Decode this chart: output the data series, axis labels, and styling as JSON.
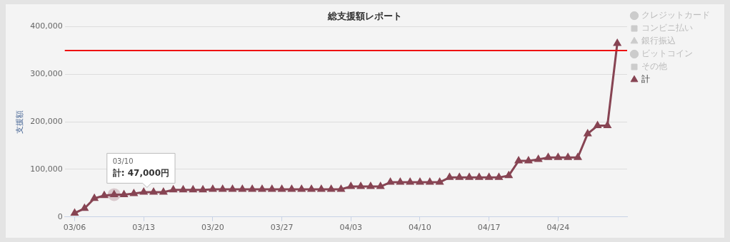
{
  "chart_data": {
    "type": "line",
    "title": "総支援額レポート",
    "ylabel": "支援額",
    "x": [
      "--03-06",
      "--03-07",
      "--03-08",
      "--03-09",
      "--03-10",
      "--03-11",
      "--03-12",
      "--03-13",
      "--03-14",
      "--03-15",
      "--03-16",
      "--03-17",
      "--03-18",
      "--03-19",
      "--03-20",
      "--03-21",
      "--03-22",
      "--03-23",
      "--03-24",
      "--03-25",
      "--03-26",
      "--03-27",
      "--03-28",
      "--03-29",
      "--03-30",
      "--03-31",
      "--04-01",
      "--04-02",
      "--04-03",
      "--04-04",
      "--04-05",
      "--04-06",
      "--04-07",
      "--04-08",
      "--04-09",
      "--04-10",
      "--04-11",
      "--04-12",
      "--04-13",
      "--04-14",
      "--04-15",
      "--04-16",
      "--04-17",
      "--04-18",
      "--04-19",
      "--04-20",
      "--04-21",
      "--04-22",
      "--04-23",
      "--04-24",
      "--04-25",
      "--04-26",
      "--04-27",
      "--04-28",
      "--04-29",
      "--04-30"
    ],
    "series": [
      {
        "name": "クレジットカード",
        "color": "#cccccc",
        "marker": "circle",
        "values": [
          null,
          null,
          null,
          null,
          null,
          null,
          null,
          null,
          null,
          null,
          null,
          null,
          null,
          null,
          null,
          null,
          null,
          null,
          null,
          null,
          null,
          null,
          null,
          null,
          null,
          null,
          null,
          null,
          null,
          null,
          null,
          null,
          null,
          null,
          null,
          null,
          null,
          null,
          null,
          null,
          null,
          null,
          null,
          null,
          null,
          null,
          null,
          null,
          null,
          null,
          null,
          null,
          null,
          null,
          null,
          null
        ]
      },
      {
        "name": "コンビニ払い",
        "color": "#cccccc",
        "marker": "square",
        "values": [
          null,
          null,
          null,
          null,
          null,
          null,
          null,
          null,
          null,
          null,
          null,
          null,
          null,
          null,
          null,
          null,
          null,
          null,
          null,
          null,
          null,
          null,
          null,
          null,
          null,
          null,
          null,
          null,
          null,
          null,
          null,
          null,
          null,
          null,
          null,
          null,
          null,
          null,
          null,
          null,
          null,
          null,
          null,
          null,
          null,
          null,
          null,
          null,
          null,
          null,
          null,
          null,
          null,
          null,
          null,
          null
        ]
      },
      {
        "name": "銀行振込",
        "color": "#cccccc",
        "marker": "triangle",
        "values": [
          null,
          null,
          null,
          null,
          null,
          null,
          null,
          null,
          null,
          null,
          null,
          null,
          null,
          null,
          null,
          null,
          null,
          null,
          null,
          null,
          null,
          null,
          null,
          null,
          null,
          null,
          null,
          null,
          null,
          null,
          null,
          null,
          null,
          null,
          null,
          null,
          null,
          null,
          null,
          null,
          null,
          null,
          null,
          null,
          null,
          null,
          null,
          null,
          null,
          null,
          null,
          null,
          null,
          null,
          null,
          null
        ]
      },
      {
        "name": "ビットコイン",
        "color": "#cccccc",
        "marker": "circle",
        "values": [
          null,
          null,
          null,
          null,
          null,
          null,
          null,
          null,
          null,
          null,
          null,
          null,
          null,
          null,
          null,
          null,
          null,
          null,
          null,
          null,
          null,
          null,
          null,
          null,
          null,
          null,
          null,
          null,
          null,
          null,
          null,
          null,
          null,
          null,
          null,
          null,
          null,
          null,
          null,
          null,
          null,
          null,
          null,
          null,
          null,
          null,
          null,
          null,
          null,
          null,
          null,
          null,
          null,
          null,
          null,
          null
        ]
      },
      {
        "name": "その他",
        "color": "#cccccc",
        "marker": "square",
        "values": [
          null,
          null,
          null,
          null,
          null,
          null,
          null,
          null,
          null,
          null,
          null,
          null,
          null,
          null,
          null,
          null,
          null,
          null,
          null,
          null,
          null,
          null,
          null,
          null,
          null,
          null,
          null,
          null,
          null,
          null,
          null,
          null,
          null,
          null,
          null,
          null,
          null,
          null,
          null,
          null,
          null,
          null,
          null,
          null,
          null,
          null,
          null,
          null,
          null,
          null,
          null,
          null,
          null,
          null,
          null,
          null
        ]
      },
      {
        "name": "計",
        "color": "#874453",
        "marker": "triangle",
        "values": [
          8000,
          18000,
          39000,
          45000,
          47000,
          47000,
          49000,
          52000,
          52000,
          52000,
          57000,
          57000,
          57000,
          57000,
          58000,
          58000,
          58000,
          58000,
          58000,
          58000,
          58000,
          58000,
          58000,
          58000,
          58000,
          58000,
          58000,
          58000,
          64000,
          64000,
          64000,
          64000,
          73000,
          73000,
          73000,
          73000,
          73000,
          73000,
          83000,
          83000,
          83000,
          83000,
          83000,
          83000,
          87000,
          118000,
          118000,
          121000,
          125000,
          125000,
          125000,
          125000,
          175000,
          192000,
          192000,
          365000
        ]
      }
    ],
    "xlim": [
      "--03-05",
      "--05-01"
    ],
    "xticks": [
      {
        "value": "--03-06",
        "label": "03/06"
      },
      {
        "value": "--03-13",
        "label": "03/13"
      },
      {
        "value": "--03-20",
        "label": "03/20"
      },
      {
        "value": "--03-27",
        "label": "03/27"
      },
      {
        "value": "--04-03",
        "label": "04/03"
      },
      {
        "value": "--04-10",
        "label": "04/10"
      },
      {
        "value": "--04-17",
        "label": "04/17"
      },
      {
        "value": "--04-24",
        "label": "04/24"
      }
    ],
    "ylim": [
      0,
      400000
    ],
    "yticks": [
      {
        "value": 0,
        "label": "0"
      },
      {
        "value": 100000,
        "label": "100,000"
      },
      {
        "value": 200000,
        "label": "200,000"
      },
      {
        "value": 300000,
        "label": "300,000"
      },
      {
        "value": 400000,
        "label": "400,000"
      }
    ],
    "grid": "y",
    "legend": "right",
    "line_style": "solid",
    "ref_lines": [
      {
        "axis": "y",
        "value": 350000,
        "color": "#ee1111"
      }
    ],
    "annotations": [
      {
        "text": "03/10\n計: 47,000円",
        "x": "--03-10",
        "y": 47000
      }
    ]
  }
}
